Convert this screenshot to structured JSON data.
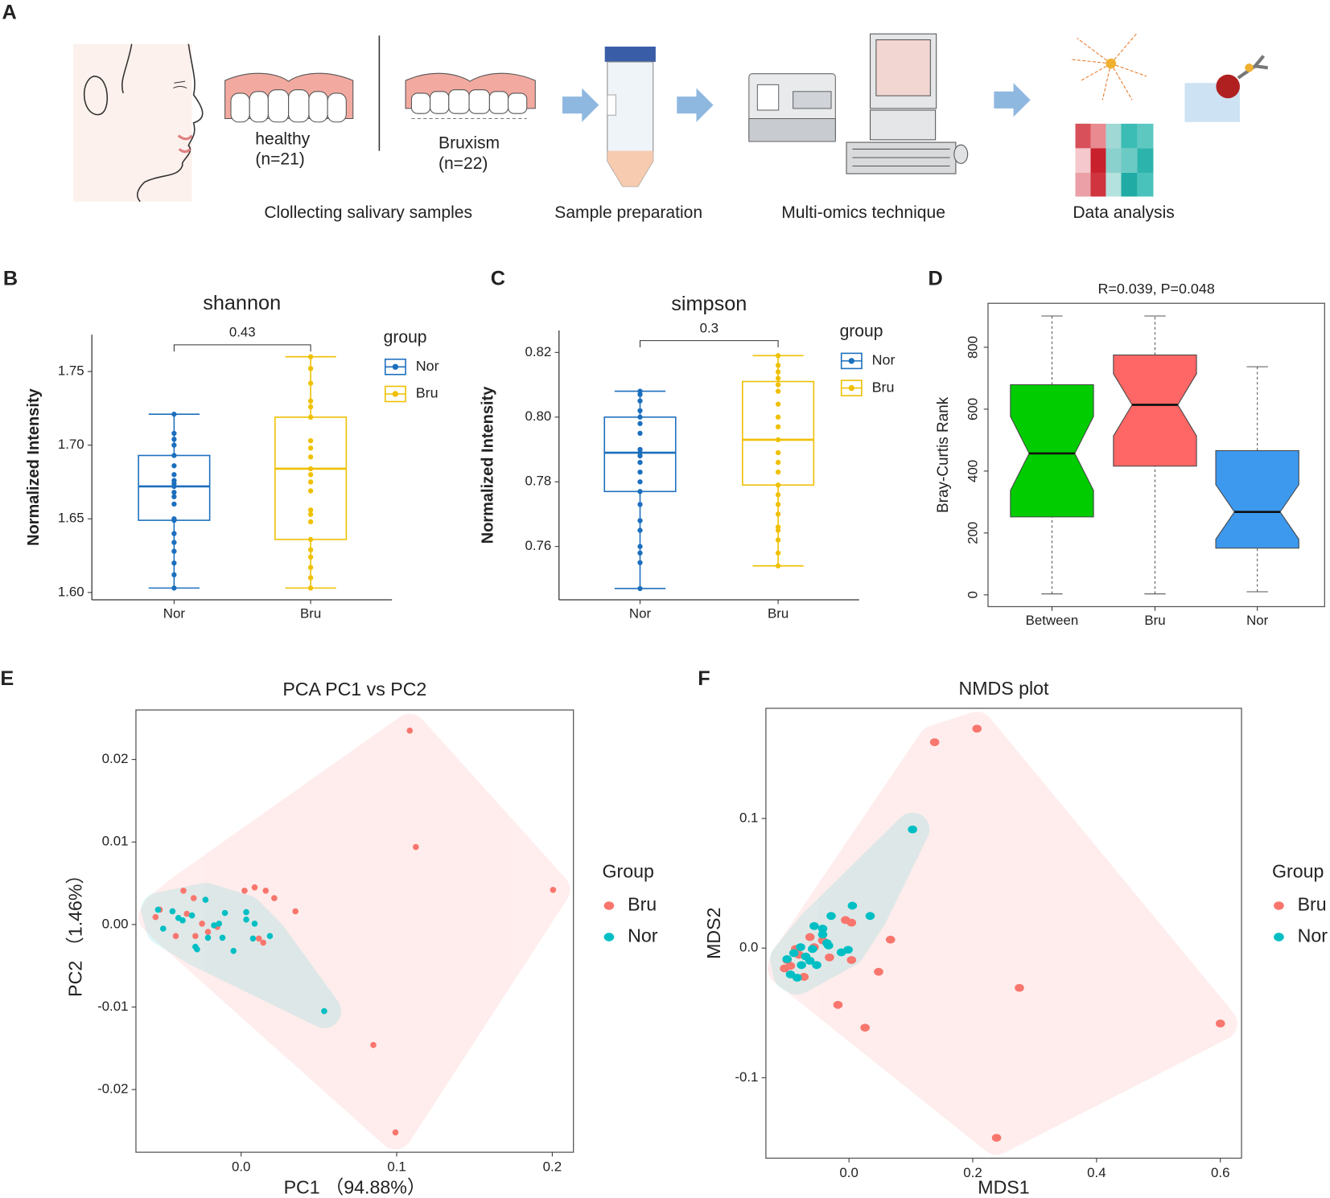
{
  "panel_a": {
    "label": "A",
    "healthy": "healthy",
    "healthy_n": "(n=21)",
    "bruxism": "Bruxism",
    "bruxism_n": "(n=22)",
    "steps": [
      "Clollecting salivary samples",
      "Sample preparation",
      "Multi-omics technique",
      "Data analysis"
    ]
  },
  "chart_data": [
    {
      "panel": "B",
      "type": "box",
      "title": "shannon",
      "ylabel": "Normalized Intensity",
      "categories": [
        "Nor",
        "Bru"
      ],
      "annotation": "0.43",
      "legend_title": "group",
      "series": [
        {
          "name": "Nor",
          "color": "#1c6fbe",
          "values": [
            1.721,
            1.708,
            1.704,
            1.7,
            1.693,
            1.686,
            1.68,
            1.676,
            1.672,
            1.668,
            1.665,
            1.66,
            1.65,
            1.649,
            1.64,
            1.634,
            1.628,
            1.62,
            1.612,
            1.603,
            1.674
          ],
          "box": {
            "low": 1.603,
            "q1": 1.649,
            "median": 1.672,
            "q3": 1.693,
            "high": 1.721
          }
        },
        {
          "name": "Bru",
          "color": "#efc000",
          "values": [
            1.76,
            1.752,
            1.742,
            1.73,
            1.726,
            1.719,
            1.703,
            1.698,
            1.692,
            1.684,
            1.68,
            1.675,
            1.669,
            1.656,
            1.653,
            1.648,
            1.636,
            1.629,
            1.624,
            1.617,
            1.61,
            1.603
          ],
          "box": {
            "low": 1.603,
            "q1": 1.636,
            "median": 1.684,
            "q3": 1.719,
            "high": 1.76
          }
        }
      ],
      "ylim": [
        1.595,
        1.775
      ],
      "yticks": [
        {
          "value": 1.6,
          "label": "1.60"
        },
        1.65,
        {
          "value": 1.7,
          "label": "1.70"
        },
        1.75
      ]
    },
    {
      "panel": "C",
      "type": "box",
      "title": "simpson",
      "ylabel": "Normalized Intensity",
      "categories": [
        "Nor",
        "Bru"
      ],
      "annotation": "0.3",
      "legend_title": "group",
      "series": [
        {
          "name": "Nor",
          "color": "#1c6fbe",
          "values": [
            0.808,
            0.807,
            0.805,
            0.802,
            0.8,
            0.798,
            0.795,
            0.79,
            0.789,
            0.788,
            0.786,
            0.783,
            0.78,
            0.777,
            0.773,
            0.768,
            0.765,
            0.76,
            0.758,
            0.755,
            0.747
          ],
          "box": {
            "low": 0.747,
            "q1": 0.777,
            "median": 0.789,
            "q3": 0.8,
            "high": 0.808
          }
        },
        {
          "name": "Bru",
          "color": "#efc000",
          "values": [
            0.819,
            0.816,
            0.814,
            0.812,
            0.81,
            0.808,
            0.804,
            0.8,
            0.797,
            0.793,
            0.789,
            0.786,
            0.783,
            0.779,
            0.776,
            0.773,
            0.77,
            0.766,
            0.762,
            0.758,
            0.754,
            0.765
          ],
          "box": {
            "low": 0.754,
            "q1": 0.779,
            "median": 0.793,
            "q3": 0.811,
            "high": 0.819
          }
        }
      ],
      "ylim": [
        0.7435,
        0.8268
      ],
      "yticks": [
        0.76,
        0.78,
        {
          "value": 0.8,
          "label": "0.80"
        },
        0.82
      ]
    },
    {
      "panel": "D",
      "type": "notched_box",
      "title": "R=0.039, P=0.048",
      "ylabel": "Bray-Curtis Rank",
      "categories": [
        "Between",
        "Bru",
        "Nor"
      ],
      "colors": [
        "#00cc00",
        "#ff6666",
        "#3d99ee"
      ],
      "boxes": [
        {
          "low": 3,
          "q1": 252,
          "median": 457,
          "q3": 679,
          "high": 901
        },
        {
          "low": 3,
          "q1": 416,
          "median": 614,
          "q3": 775,
          "high": 901
        },
        {
          "low": 10,
          "q1": 151,
          "median": 268,
          "q3": 466,
          "high": 737
        }
      ],
      "ylim": [
        -38,
        942
      ],
      "yticks": [
        0,
        200,
        400,
        600,
        800
      ]
    },
    {
      "panel": "E",
      "type": "scatter",
      "title": "PCA PC1 vs PC2",
      "xlabel": "PC1 （94.88%）",
      "ylabel": "PC2 （1.46%）",
      "legend_title": "Group",
      "hulls": true,
      "series": [
        {
          "name": "Bru",
          "color": "#f8766d",
          "x": [
            0.1084,
            0.1123,
            0.2005,
            0.085,
            0.0992,
            -0.0371,
            -0.0305,
            -0.0523,
            -0.055,
            -0.042,
            -0.0294,
            -0.0213,
            0.0022,
            0.0087,
            0.0158,
            0.0213,
            0.0349,
            0.0114,
            0.0142,
            -0.0153,
            -0.0349,
            -0.0251
          ],
          "y": [
            0.0235,
            0.0094,
            0.0042,
            -0.0146,
            -0.0252,
            0.0041,
            0.0032,
            0.0018,
            0.0009,
            -0.0014,
            -0.0014,
            -0.0009,
            0.0041,
            0.0045,
            0.0041,
            0.0032,
            0.0016,
            -0.0017,
            -0.0022,
            -0.0003,
            0.0013,
            0.0001
          ]
        },
        {
          "name": "Nor",
          "color": "#00bfc4",
          "x": [
            -0.0534,
            -0.0501,
            -0.0441,
            -0.0376,
            -0.0283,
            -0.0229,
            -0.0174,
            -0.0142,
            -0.0104,
            -0.0049,
            0.0033,
            0.0087,
            0.0185,
            0.0076,
            -0.0213,
            -0.0294,
            -0.012,
            0.0534,
            -0.0403,
            -0.0316,
            0.0033
          ],
          "y": [
            0.0018,
            -0.0005,
            0.0016,
            0.0005,
            -0.003,
            0.003,
            -0.0001,
            0.0001,
            0.0014,
            -0.0032,
            0.0006,
            0.0001,
            -0.0014,
            -0.0017,
            -0.0016,
            -0.0027,
            -0.0016,
            -0.0105,
            0.0008,
            0.0011,
            0.0015
          ]
        }
      ],
      "xlim": [
        -0.0676,
        0.2136
      ],
      "ylim": [
        -0.0276,
        0.026
      ],
      "xticks": [
        {
          "value": 0,
          "label": "0.0"
        },
        0.1,
        0.2
      ],
      "yticks": [
        -0.02,
        -0.01,
        {
          "value": 0,
          "label": "0.00"
        },
        0.01,
        0.02
      ]
    },
    {
      "panel": "F",
      "type": "scatter",
      "title": "NMDS plot",
      "xlabel": "MDS1",
      "ylabel": "MDS2",
      "legend_title": "Group",
      "hulls": true,
      "series": [
        {
          "name": "Bru",
          "color": "#f8766d",
          "x": [
            0.1384,
            0.2068,
            0.6,
            0.2753,
            0.0671,
            0.0479,
            0.0041,
            -0.0315,
            -0.0178,
            0.026,
            0.2384,
            -0.0055,
            0.0041,
            -0.063,
            -0.0808,
            -0.0945,
            -0.1041,
            -0.0726,
            -0.0562,
            -0.0863,
            -0.0425,
            -0.1
          ],
          "y": [
            0.1588,
            0.1693,
            -0.0582,
            -0.0307,
            0.0065,
            -0.0183,
            -0.0092,
            -0.0072,
            -0.0438,
            -0.0614,
            -0.1464,
            0.0216,
            0.0196,
            0.0085,
            -0.0052,
            -0.0137,
            -0.0157,
            -0.0222,
            0.0007,
            -0.0007,
            0.0059,
            -0.0092
          ]
        },
        {
          "name": "Nor",
          "color": "#00bfc4",
          "x": [
            0.1027,
            0.0055,
            0.0342,
            -0.0288,
            -0.0562,
            -0.0425,
            -0.0329,
            -0.0589,
            -0.0781,
            -0.089,
            -0.0767,
            -0.0521,
            -0.0945,
            -0.0836,
            -0.0014,
            -0.0123,
            -0.0425,
            -0.0699,
            -0.063,
            -0.0356,
            -0.1
          ],
          "y": [
            0.0915,
            0.0327,
            0.0248,
            0.0248,
            0.017,
            0.0105,
            0.002,
            -0.0007,
            0.0007,
            -0.0039,
            -0.0131,
            -0.0131,
            -0.0203,
            -0.0229,
            -0.0013,
            -0.0033,
            0.015,
            -0.0065,
            -0.0098,
            0.0039,
            -0.0085
          ]
        }
      ],
      "xlim": [
        -0.1342,
        0.6342
      ],
      "ylim": [
        -0.1621,
        0.185
      ],
      "xticks": [
        {
          "value": 0,
          "label": "0.0"
        },
        0.2,
        0.4,
        0.6
      ],
      "yticks": [
        -0.1,
        {
          "value": 0,
          "label": "0.0"
        },
        0.1
      ]
    }
  ]
}
